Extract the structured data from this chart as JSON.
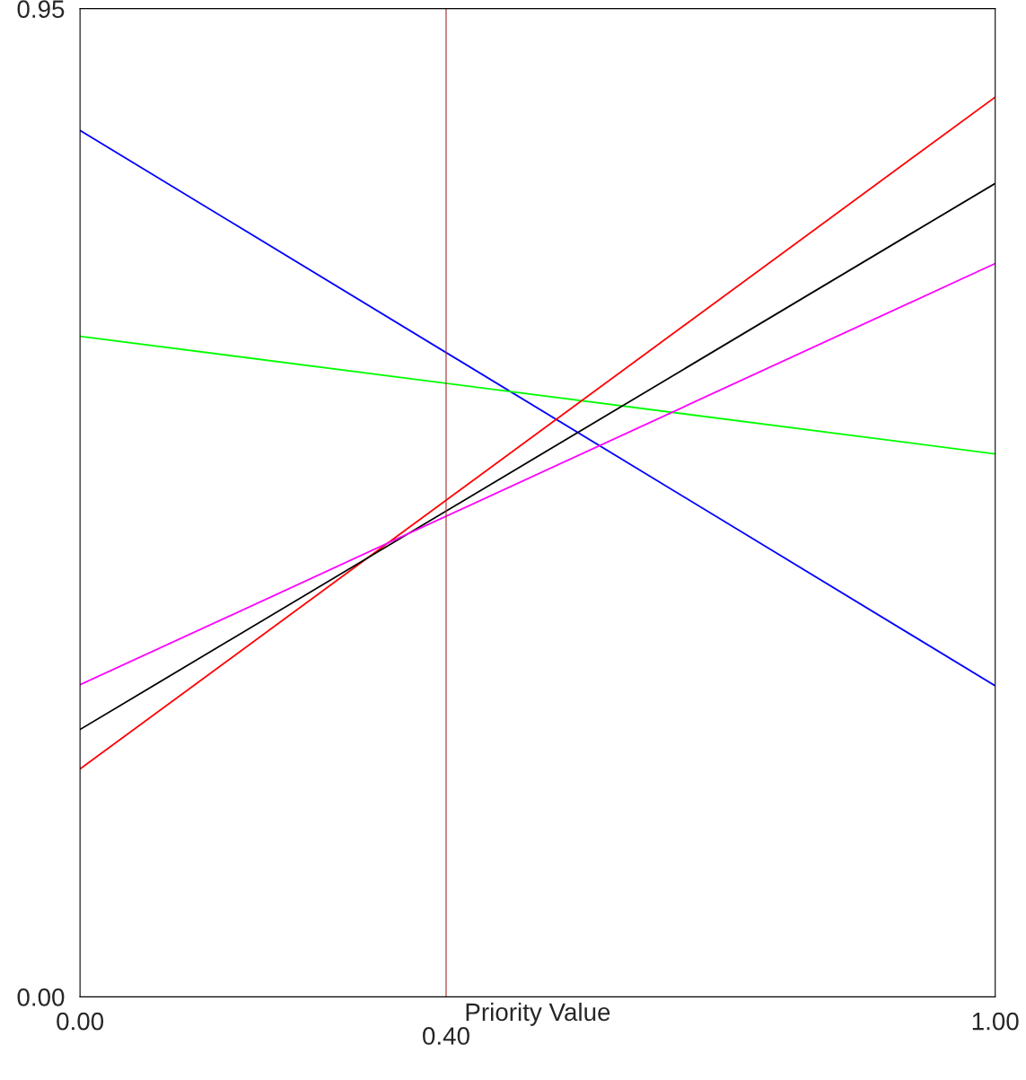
{
  "chart_data": {
    "type": "line",
    "xlabel": "Priority Value",
    "x": [
      0,
      1
    ],
    "series": [
      {
        "color": "#0000ff",
        "values": [
          0.833,
          0.299
        ]
      },
      {
        "color": "#00ff00",
        "values": [
          0.635,
          0.522
        ]
      },
      {
        "color": "#ff0000",
        "values": [
          0.219,
          0.865
        ]
      },
      {
        "color": "#000000",
        "values": [
          0.257,
          0.782
        ]
      },
      {
        "color": "#ff00ff",
        "values": [
          0.3,
          0.705
        ]
      }
    ],
    "xlim": [
      0,
      1
    ],
    "ylim": [
      0,
      0.95
    ],
    "xticks": [
      {
        "value": 0,
        "label": "0.00"
      },
      {
        "value": 1,
        "label": "1.00"
      }
    ],
    "yticks": [
      {
        "value": 0,
        "label": "0.00"
      },
      {
        "value": 0.95,
        "label": "0.95"
      }
    ],
    "ref_lines": [
      {
        "axis": "x",
        "value": 0.4,
        "label": "0.40",
        "color": "#a52a2a"
      }
    ],
    "grid": false,
    "legend": false
  }
}
